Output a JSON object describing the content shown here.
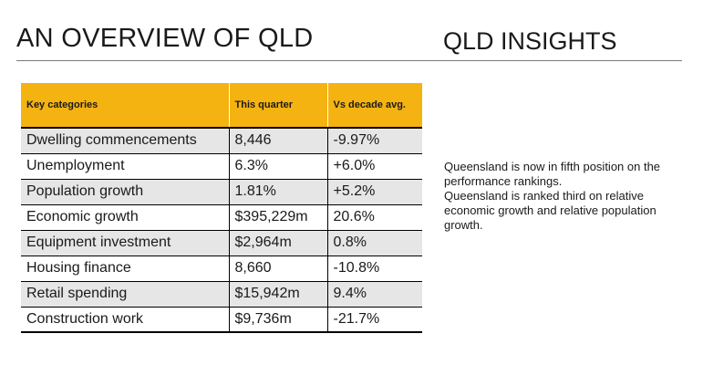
{
  "titles": {
    "left": "AN OVERVIEW OF QLD",
    "right": "QLD INSIGHTS"
  },
  "table": {
    "headers": [
      "Key categories",
      "This quarter",
      "Vs decade avg."
    ],
    "rows": [
      [
        "Dwelling commencements",
        "8,446",
        "-9.97%"
      ],
      [
        "Unemployment",
        "6.3%",
        "+6.0%"
      ],
      [
        "Population growth",
        "1.81%",
        "+5.2%"
      ],
      [
        "Economic growth",
        "$395,229m",
        "20.6%"
      ],
      [
        "Equipment investment",
        "$2,964m",
        "0.8%"
      ],
      [
        "Housing finance",
        "8,660",
        "-10.8%"
      ],
      [
        "Retail spending",
        "$15,942m",
        "9.4%"
      ],
      [
        "Construction work",
        "$9,736m",
        "-21.7%"
      ]
    ]
  },
  "insights": [
    "Queensland is now in fifth position on the performance rankings.",
    "Queensland is ranked third on relative economic growth and relative population growth."
  ],
  "colors": {
    "header": "#f5b312",
    "shaded_row": "#e6e6e6"
  }
}
